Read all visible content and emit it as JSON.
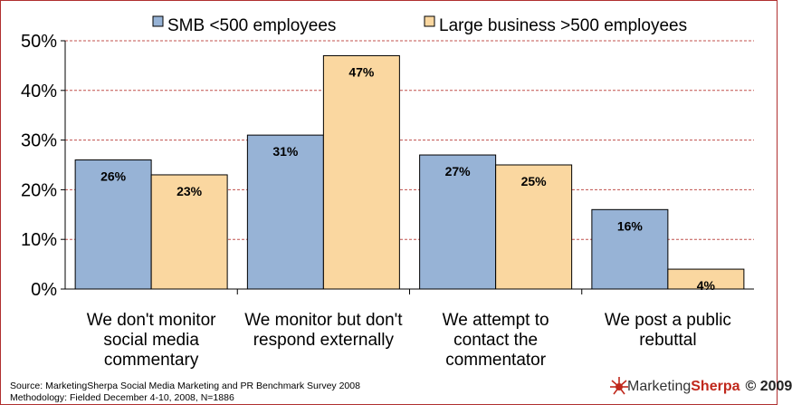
{
  "chart_data": {
    "type": "bar",
    "categories": [
      [
        "We don't monitor",
        "social media",
        "commentary"
      ],
      [
        "We monitor but don't",
        "respond externally"
      ],
      [
        "We attempt to",
        "contact the",
        "commentator"
      ],
      [
        "We post a public",
        "rebuttal"
      ]
    ],
    "series": [
      {
        "name": "SMB <500 employees",
        "values": [
          26,
          31,
          27,
          16
        ],
        "color": "#97b3d6"
      },
      {
        "name": "Large business >500 employees",
        "values": [
          23,
          47,
          25,
          4
        ],
        "color": "#fad7a0"
      }
    ],
    "ylim": [
      0,
      50
    ],
    "yticks": [
      "0%",
      "10%",
      "20%",
      "30%",
      "40%",
      "50%"
    ],
    "ytick_values": [
      0,
      10,
      20,
      30,
      40,
      50
    ],
    "value_suffix": "%",
    "grid": true,
    "grid_color": "#c0504d",
    "legend_position": "top"
  },
  "footer": {
    "source": "Source: MarketingSherpa Social Media Marketing and PR Benchmark Survey 2008",
    "methodology": "Methodology: Fielded December 4-10, 2008, N=1886"
  },
  "logo": {
    "part1": "Marketing",
    "part2": "Sherpa",
    "copyright": "© 2009"
  }
}
